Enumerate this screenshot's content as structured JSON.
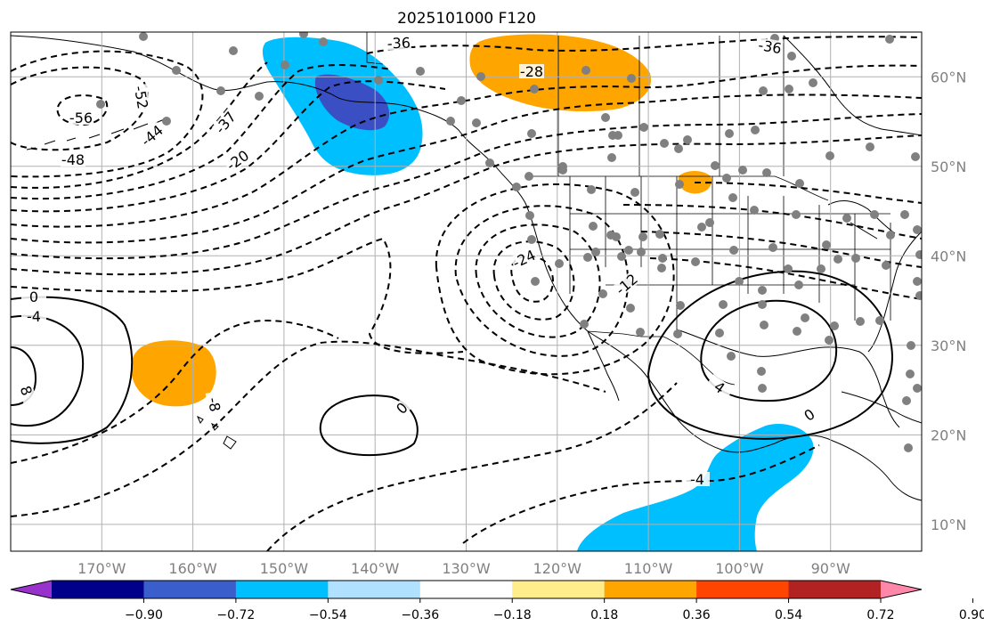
{
  "title": "2025101000 F120",
  "map": {
    "projection": "PlateCarree",
    "lon_range": [
      -180,
      -80
    ],
    "lat_range": [
      7,
      65
    ],
    "lon_ticks": [
      "170°W",
      "160°W",
      "150°W",
      "140°W",
      "130°W",
      "120°W",
      "110°W",
      "100°W",
      "90°W"
    ],
    "lat_ticks": [
      "60°N",
      "50°N",
      "40°N",
      "30°N",
      "20°N",
      "10°N"
    ],
    "grid": true,
    "colors": {
      "negative_strong": "#3a4fc4",
      "negative": "#00bfff",
      "positive": "#ffa500",
      "station_dot": "#808080",
      "contour": "#000000"
    }
  },
  "contour_labels": [
    "-36",
    "-36",
    "-28",
    "-52",
    "-56",
    "-48",
    "-44",
    "-37",
    "-20",
    "-24",
    "-12",
    "0",
    "-4",
    "8",
    "-8",
    "0",
    "-4",
    "4",
    "0"
  ],
  "colorbar": {
    "colors": [
      "#9932cc",
      "#00008b",
      "#3a5fcd",
      "#00bfff",
      "#b0e2ff",
      "#ffffff",
      "#ffec8b",
      "#ffa500",
      "#ff4500",
      "#b22222",
      "#ff88aa"
    ],
    "tick_labels": [
      "−0.90",
      "−0.72",
      "−0.54",
      "−0.36",
      "−0.18",
      "0.18",
      "0.36",
      "0.54",
      "0.72",
      "0.90"
    ]
  }
}
